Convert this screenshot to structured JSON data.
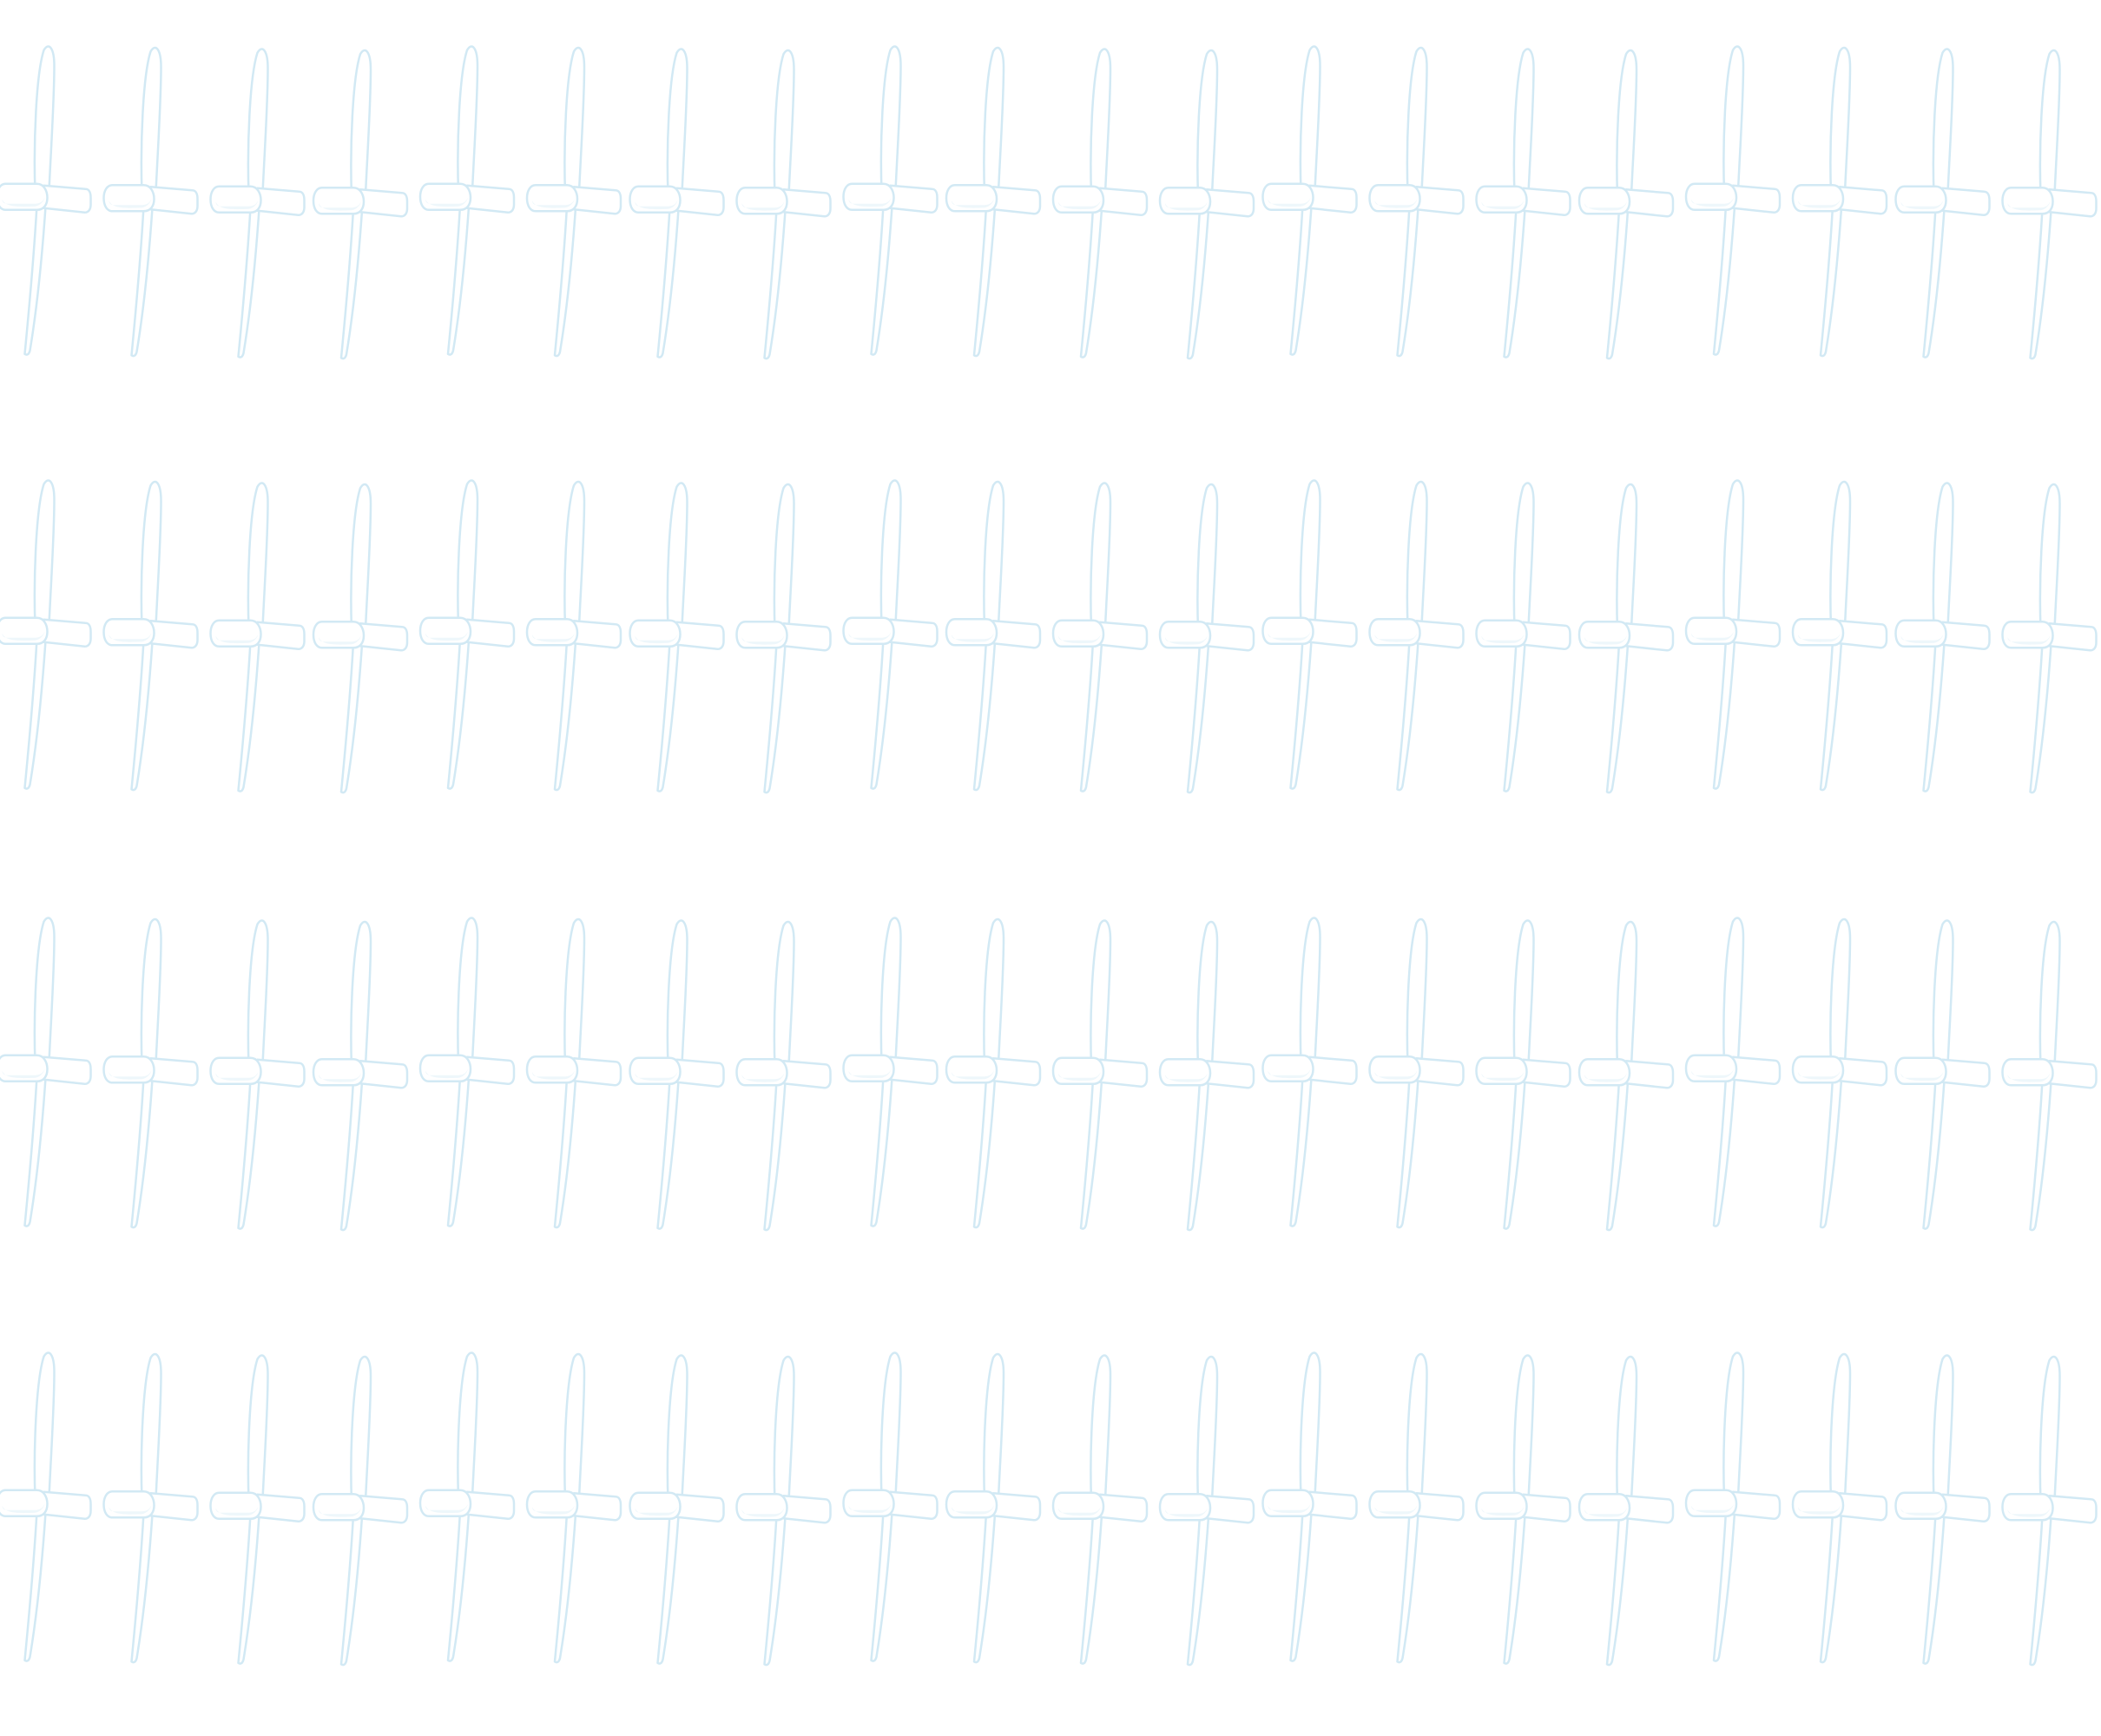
{
  "photo": {
    "subject": "propeller-icon",
    "grid": {
      "rows": 4,
      "columns": 20
    },
    "item_count": 80,
    "colors": {
      "background": "#ffffff",
      "propeller_fill": "#ffffff",
      "propeller_edge": "#d2e9f4",
      "propeller_shade": "#eef7fb"
    }
  }
}
